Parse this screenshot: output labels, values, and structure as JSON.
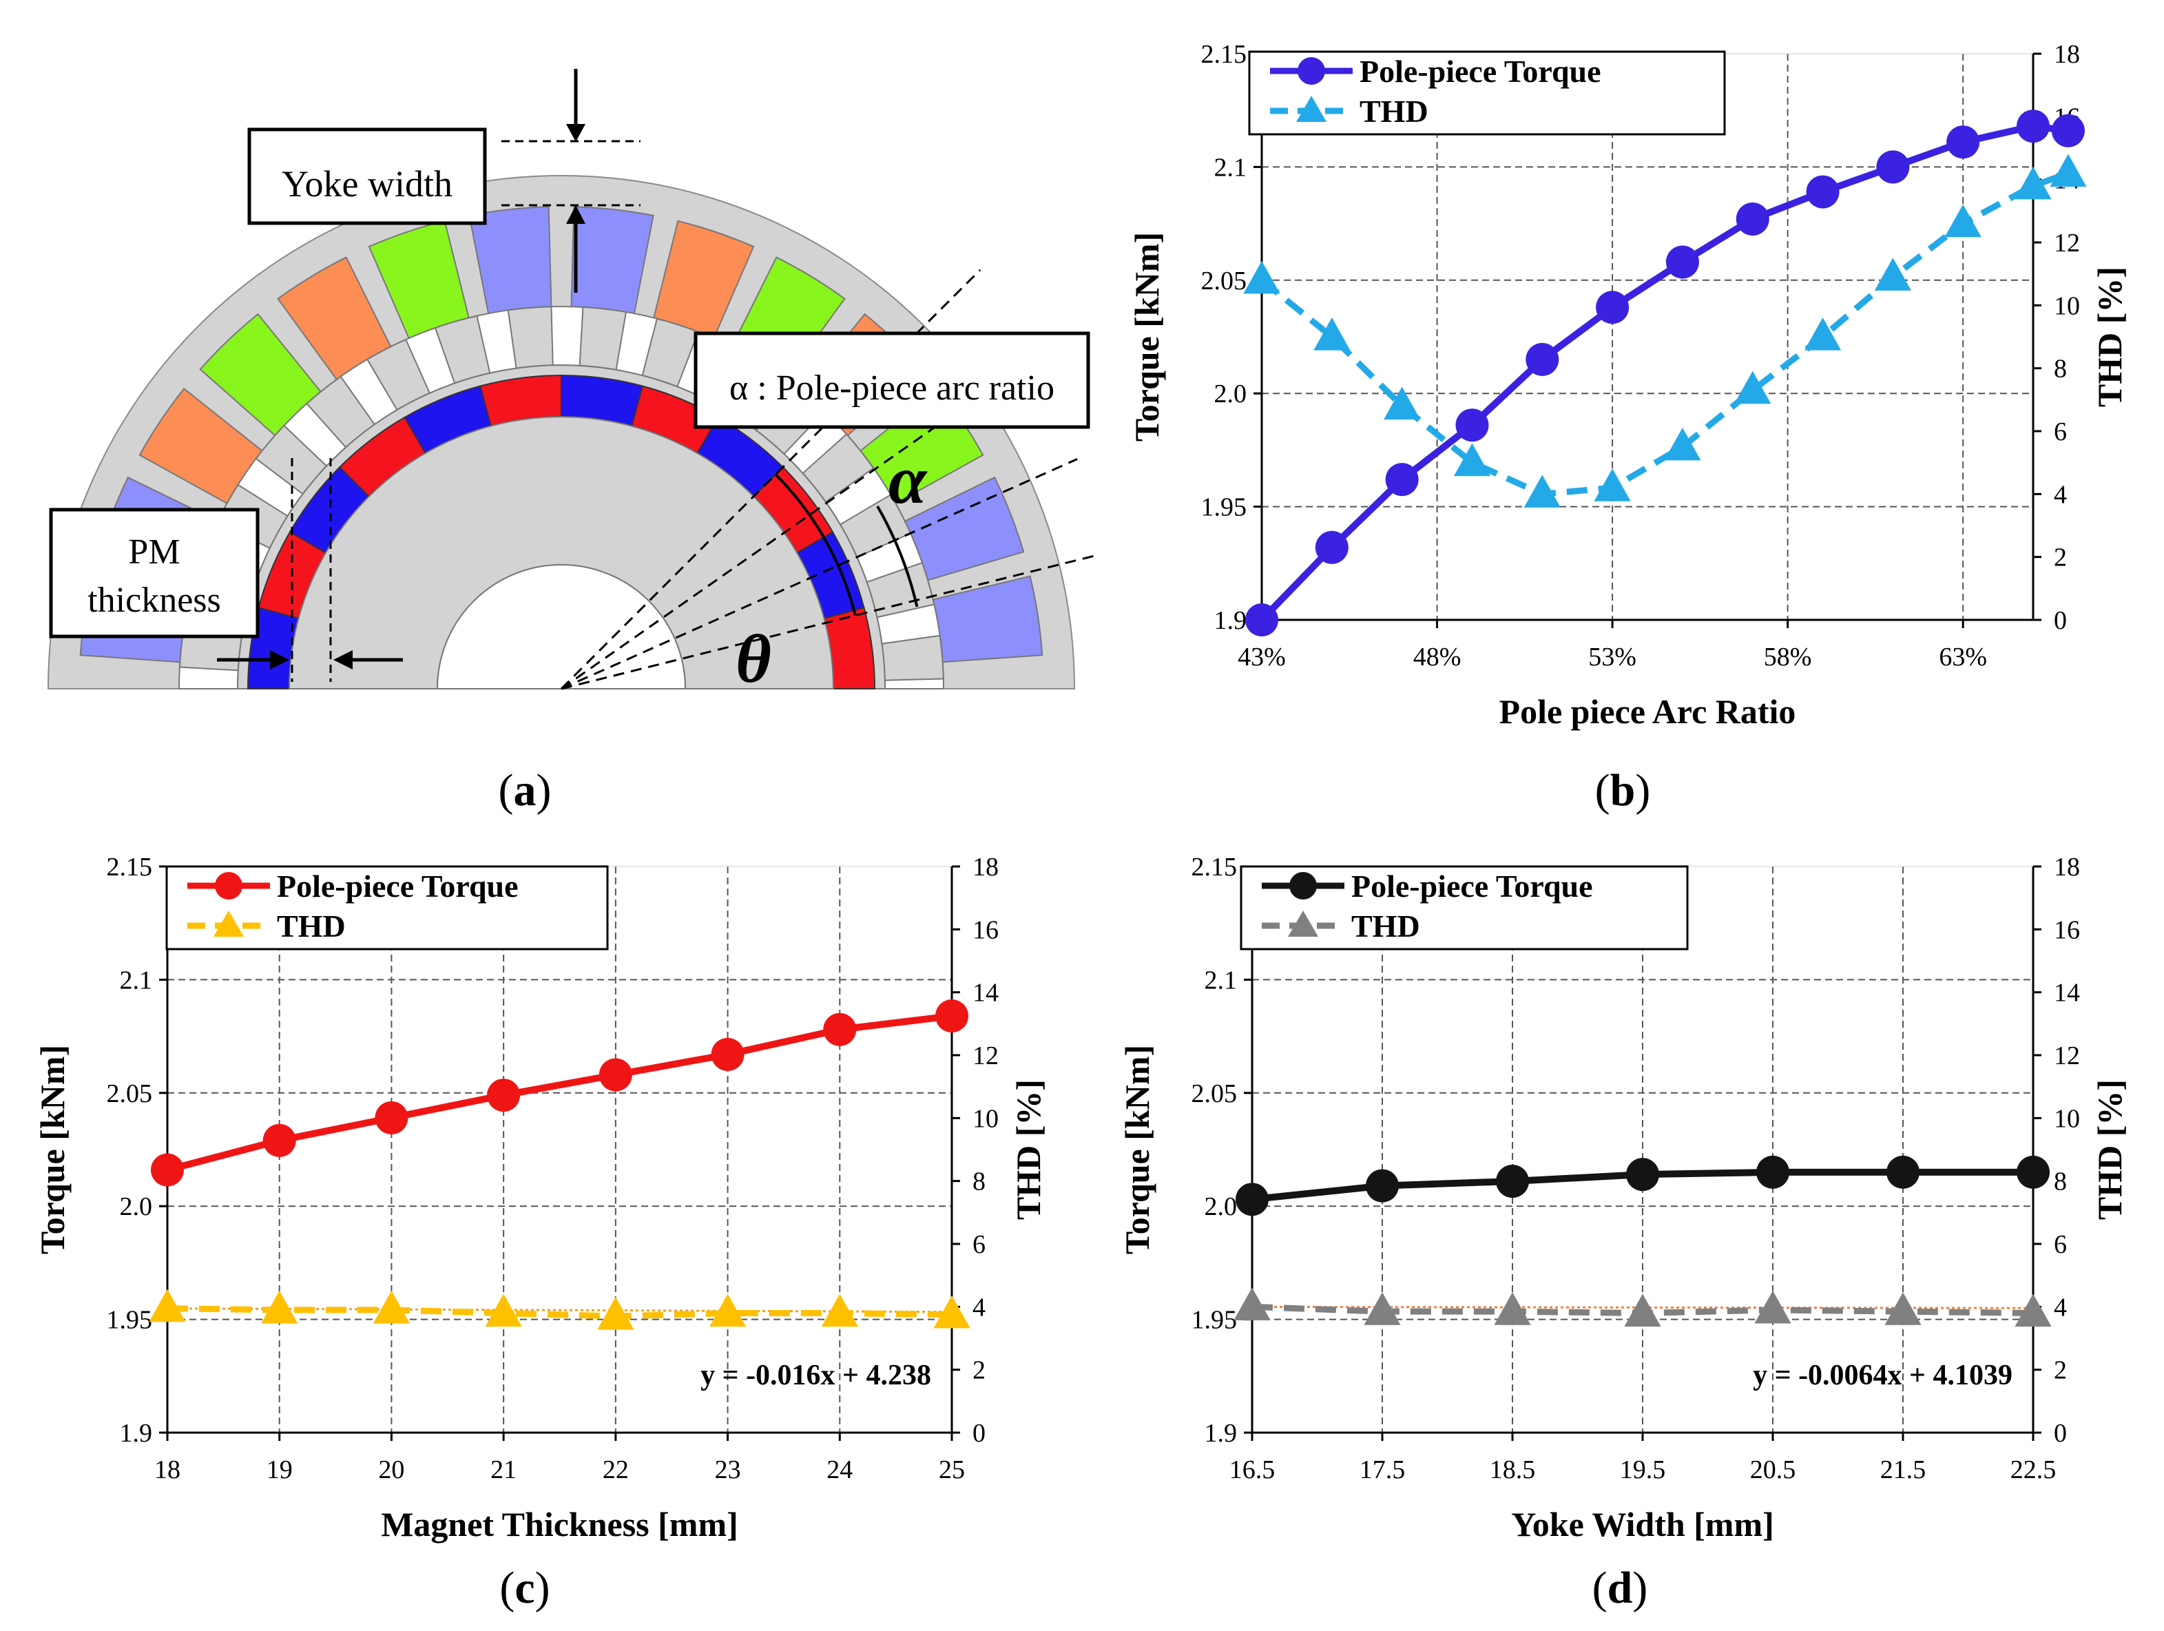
{
  "captions": {
    "a": "a",
    "b": "b",
    "c": "c",
    "d": "d"
  },
  "diagram": {
    "yoke_label": "Yoke width",
    "pm_label_line1": "PM",
    "pm_label_line2": "thickness",
    "alpha_label": "α : Pole-piece arc ratio",
    "alpha_symbol": "α",
    "theta_symbol": "θ",
    "colors": {
      "gray": "#d3d3d3",
      "green": "#88f51c",
      "orange": "#fb8d55",
      "lilac": "#8d8ffd",
      "red": "#f5141e",
      "blue": "#1e14f0"
    }
  },
  "chart_data": [
    {
      "id": "b",
      "type": "line",
      "xlabel": "Pole piece Arc Ratio",
      "ylabel": "Torque [kNm]",
      "y2label": "THD [%]",
      "x_ticks": [
        "43%",
        "48%",
        "53%",
        "58%",
        "63%"
      ],
      "x_tick_values": [
        43,
        48,
        53,
        58,
        63
      ],
      "xlim": [
        43,
        65
      ],
      "ylim": [
        1.9,
        2.15
      ],
      "y_ticks": [
        "1.9",
        "1.95",
        "2.0",
        "2.05",
        "2.1",
        "2.15"
      ],
      "y_tick_values": [
        1.9,
        1.95,
        2.0,
        2.05,
        2.1,
        2.15
      ],
      "y2lim": [
        0,
        18
      ],
      "y2_ticks": [
        "0",
        "2",
        "4",
        "6",
        "8",
        "10",
        "12",
        "14",
        "16",
        "18"
      ],
      "y2_tick_values": [
        0,
        2,
        4,
        6,
        8,
        10,
        12,
        14,
        16,
        18
      ],
      "x_gridlines": [
        43,
        48,
        53,
        58,
        63
      ],
      "series": [
        {
          "name": "Pole-piece Torque",
          "axis": "left",
          "color": "#3a22e0",
          "style": "solid",
          "marker": "circle",
          "x": [
            43,
            45,
            47,
            49,
            51,
            53,
            55,
            57,
            59,
            61,
            63,
            65,
            66
          ],
          "y": [
            1.9,
            1.932,
            1.962,
            1.986,
            2.015,
            2.038,
            2.058,
            2.077,
            2.089,
            2.1,
            2.111,
            2.118,
            2.116
          ]
        },
        {
          "name": "THD",
          "axis": "right",
          "color": "#23a9e8",
          "style": "dashed",
          "marker": "triangle",
          "x": [
            43,
            45,
            47,
            49,
            51,
            53,
            55,
            57,
            59,
            61,
            63,
            65,
            66
          ],
          "y": [
            10.8,
            9.0,
            6.8,
            5.0,
            4.0,
            4.2,
            5.5,
            7.3,
            9.0,
            10.9,
            12.6,
            13.8,
            14.2
          ]
        }
      ]
    },
    {
      "id": "c",
      "type": "line",
      "xlabel": "Magnet Thickness [mm]",
      "ylabel": "Torque [kNm]",
      "y2label": "THD [%]",
      "x_ticks": [
        "18",
        "19",
        "20",
        "21",
        "22",
        "23",
        "24",
        "25"
      ],
      "x_tick_values": [
        18,
        19,
        20,
        21,
        22,
        23,
        24,
        25
      ],
      "xlim": [
        18,
        25
      ],
      "ylim": [
        1.9,
        2.15
      ],
      "y_ticks": [
        "1.9",
        "1.95",
        "2.0",
        "2.05",
        "2.1",
        "2.15"
      ],
      "y_tick_values": [
        1.9,
        1.95,
        2.0,
        2.05,
        2.1,
        2.15
      ],
      "y2lim": [
        0,
        18
      ],
      "y2_ticks": [
        "0",
        "2",
        "4",
        "6",
        "8",
        "10",
        "12",
        "14",
        "16",
        "18"
      ],
      "y2_tick_values": [
        0,
        2,
        4,
        6,
        8,
        10,
        12,
        14,
        16,
        18
      ],
      "x_gridlines": [
        19,
        20,
        21,
        22,
        23,
        24
      ],
      "equation": "y = -0.016x + 4.238",
      "trend": {
        "color": "#f0a020",
        "slope": -0.016,
        "intercept": 4.238
      },
      "series": [
        {
          "name": "Pole-piece Torque",
          "axis": "left",
          "color": "#f01515",
          "style": "solid",
          "marker": "circle",
          "x": [
            18,
            19,
            20,
            21,
            22,
            23,
            24,
            25
          ],
          "y": [
            2.016,
            2.029,
            2.039,
            2.049,
            2.058,
            2.067,
            2.078,
            2.084
          ]
        },
        {
          "name": "THD",
          "axis": "right",
          "color": "#ffc000",
          "style": "dashed",
          "marker": "triangle",
          "x": [
            18,
            19,
            20,
            21,
            22,
            23,
            24,
            25
          ],
          "y": [
            3.95,
            3.9,
            3.9,
            3.8,
            3.7,
            3.8,
            3.8,
            3.75
          ]
        }
      ]
    },
    {
      "id": "d",
      "type": "line",
      "xlabel": "Yoke Width [mm]",
      "ylabel": "Torque [kNm]",
      "y2label": "THD [%]",
      "x_ticks": [
        "16.5",
        "17.5",
        "18.5",
        "19.5",
        "20.5",
        "21.5",
        "22.5"
      ],
      "x_tick_values": [
        16.5,
        17.5,
        18.5,
        19.5,
        20.5,
        21.5,
        22.5
      ],
      "xlim": [
        16.5,
        22.5
      ],
      "ylim": [
        1.9,
        2.15
      ],
      "y_ticks": [
        "1.9",
        "1.95",
        "2.0",
        "2.05",
        "2.1",
        "2.15"
      ],
      "y_tick_values": [
        1.9,
        1.95,
        2.0,
        2.05,
        2.1,
        2.15
      ],
      "y2lim": [
        0,
        18
      ],
      "y2_ticks": [
        "0",
        "2",
        "4",
        "6",
        "8",
        "10",
        "12",
        "14",
        "16",
        "18"
      ],
      "y2_tick_values": [
        0,
        2,
        4,
        6,
        8,
        10,
        12,
        14,
        16,
        18
      ],
      "x_gridlines": [
        17.5,
        18.5,
        19.5,
        20.5,
        21.5
      ],
      "equation": "y = -0.0064x + 4.1039",
      "trend": {
        "color": "#f08040",
        "slope": -0.0064,
        "intercept": 4.1039
      },
      "series": [
        {
          "name": "Pole-piece Torque",
          "axis": "left",
          "color": "#141414",
          "style": "solid",
          "marker": "circle",
          "x": [
            16.5,
            17.5,
            18.5,
            19.5,
            20.5,
            21.5,
            22.5
          ],
          "y": [
            2.003,
            2.009,
            2.011,
            2.014,
            2.015,
            2.015,
            2.015
          ]
        },
        {
          "name": "THD",
          "axis": "right",
          "color": "#808080",
          "style": "dashed",
          "marker": "triangle",
          "x": [
            16.5,
            17.5,
            18.5,
            19.5,
            20.5,
            21.5,
            22.5
          ],
          "y": [
            4.0,
            3.85,
            3.85,
            3.8,
            3.9,
            3.85,
            3.8
          ]
        }
      ]
    }
  ]
}
